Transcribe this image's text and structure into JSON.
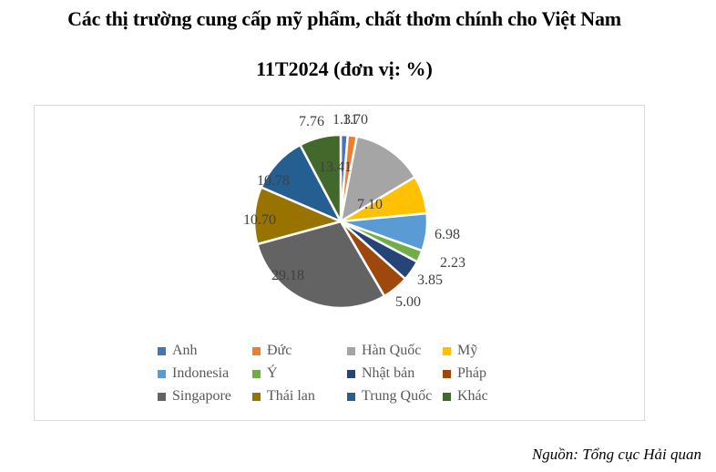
{
  "title_line1": "Các thị trường cung cấp mỹ phẩm, chất thơm chính cho Việt Nam",
  "title_line2": "11T2024 (đơn vị: %)",
  "source": "Nguồn: Tổng cục Hải quan",
  "chart_data": {
    "type": "pie",
    "title": "Các thị trường cung cấp mỹ phẩm, chất thơm chính cho Việt Nam 11T2024 (đơn vị: %)",
    "unit": "%",
    "categories": [
      "Anh",
      "Đức",
      "Hàn Quốc",
      "Mỹ",
      "Indonesia",
      "Ý",
      "Nhật bản",
      "Pháp",
      "Singapore",
      "Thái lan",
      "Trung Quốc",
      "Khác"
    ],
    "values": [
      1.31,
      1.7,
      13.41,
      7.1,
      6.98,
      2.23,
      3.85,
      5.0,
      29.18,
      10.7,
      10.78,
      7.76
    ],
    "colors": [
      "#4472C4",
      "#ED7D31",
      "#A5A5A5",
      "#FFC000",
      "#5B9BD5",
      "#70AD47",
      "#264478",
      "#9E480E",
      "#636363",
      "#997300",
      "#255E91",
      "#43682B"
    ],
    "labels": [
      "1.31",
      "1.70",
      "13.41",
      "7.10",
      "6.98",
      "2.23",
      "3.85",
      "5.00",
      "29.18",
      "10.70",
      "10.78",
      "7.76"
    ],
    "legend_position": "bottom",
    "source": "Nguồn: Tổng cục Hải quan"
  },
  "legend": [
    {
      "label": "Anh",
      "color": "#4472C4"
    },
    {
      "label": "Đức",
      "color": "#ED7D31"
    },
    {
      "label": "Hàn Quốc",
      "color": "#A5A5A5"
    },
    {
      "label": "Mỹ",
      "color": "#FFC000"
    },
    {
      "label": "Indonesia",
      "color": "#5B9BD5"
    },
    {
      "label": "Ý",
      "color": "#70AD47"
    },
    {
      "label": "Nhật bản",
      "color": "#264478"
    },
    {
      "label": "Pháp",
      "color": "#9E480E"
    },
    {
      "label": "Singapore",
      "color": "#636363"
    },
    {
      "label": "Thái lan",
      "color": "#997300"
    },
    {
      "label": "Trung Quốc",
      "color": "#255E91"
    },
    {
      "label": "Khác",
      "color": "#43682B"
    }
  ]
}
